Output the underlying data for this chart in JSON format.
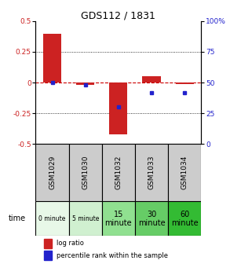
{
  "title": "GDS112 / 1831",
  "samples": [
    "GSM1029",
    "GSM1030",
    "GSM1032",
    "GSM1033",
    "GSM1034"
  ],
  "time_labels": [
    "0 minute",
    "5 minute",
    "15\nminute",
    "30\nminute",
    "60\nminute"
  ],
  "time_colors": [
    "#e8f8e8",
    "#d0f0d0",
    "#90e090",
    "#66cc66",
    "#33bb33"
  ],
  "log_ratios": [
    0.4,
    -0.02,
    -0.42,
    0.05,
    -0.01
  ],
  "percentile_ranks": [
    50,
    48,
    30,
    42,
    42
  ],
  "ylim_left": [
    -0.5,
    0.5
  ],
  "ylim_right": [
    0,
    100
  ],
  "yticks_left": [
    -0.5,
    -0.25,
    0,
    0.25,
    0.5
  ],
  "yticks_right": [
    0,
    25,
    50,
    75,
    100
  ],
  "bar_color": "#cc2222",
  "dot_color": "#2222cc",
  "zero_line_color": "#cc0000",
  "background_color": "#ffffff",
  "plot_bg": "#ffffff",
  "left_label_color": "#cc2222",
  "right_label_color": "#2222cc",
  "sample_cell_color": "#cccccc",
  "title_fontsize": 9,
  "tick_fontsize": 6.5,
  "legend_fontsize": 6
}
